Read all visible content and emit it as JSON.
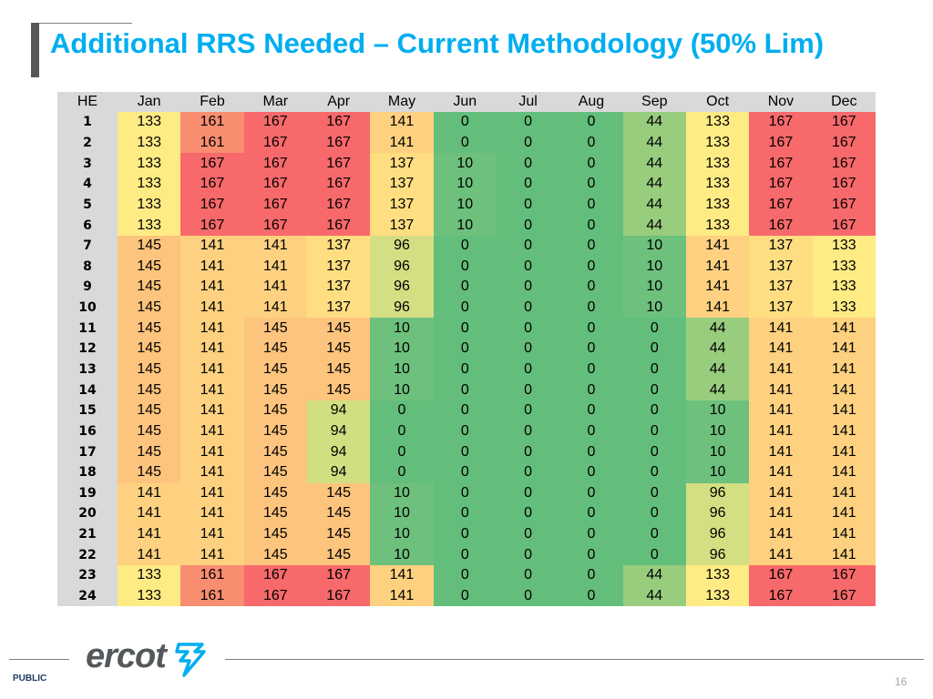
{
  "title": "Additional RRS Needed – Current Methodology (50% Lim)",
  "table": {
    "headers": [
      "HE",
      "Jan",
      "Feb",
      "Mar",
      "Apr",
      "May",
      "Jun",
      "Jul",
      "Aug",
      "Sep",
      "Oct",
      "Nov",
      "Dec"
    ],
    "rows": [
      [
        "1",
        133,
        161,
        167,
        167,
        141,
        0,
        0,
        0,
        44,
        133,
        167,
        167
      ],
      [
        "2",
        133,
        161,
        167,
        167,
        141,
        0,
        0,
        0,
        44,
        133,
        167,
        167
      ],
      [
        "3",
        133,
        167,
        167,
        167,
        137,
        10,
        0,
        0,
        44,
        133,
        167,
        167
      ],
      [
        "4",
        133,
        167,
        167,
        167,
        137,
        10,
        0,
        0,
        44,
        133,
        167,
        167
      ],
      [
        "5",
        133,
        167,
        167,
        167,
        137,
        10,
        0,
        0,
        44,
        133,
        167,
        167
      ],
      [
        "6",
        133,
        167,
        167,
        167,
        137,
        10,
        0,
        0,
        44,
        133,
        167,
        167
      ],
      [
        "7",
        145,
        141,
        141,
        137,
        96,
        0,
        0,
        0,
        10,
        141,
        137,
        133
      ],
      [
        "8",
        145,
        141,
        141,
        137,
        96,
        0,
        0,
        0,
        10,
        141,
        137,
        133
      ],
      [
        "9",
        145,
        141,
        141,
        137,
        96,
        0,
        0,
        0,
        10,
        141,
        137,
        133
      ],
      [
        "10",
        145,
        141,
        141,
        137,
        96,
        0,
        0,
        0,
        10,
        141,
        137,
        133
      ],
      [
        "11",
        145,
        141,
        145,
        145,
        10,
        0,
        0,
        0,
        0,
        44,
        141,
        141
      ],
      [
        "12",
        145,
        141,
        145,
        145,
        10,
        0,
        0,
        0,
        0,
        44,
        141,
        141
      ],
      [
        "13",
        145,
        141,
        145,
        145,
        10,
        0,
        0,
        0,
        0,
        44,
        141,
        141
      ],
      [
        "14",
        145,
        141,
        145,
        145,
        10,
        0,
        0,
        0,
        0,
        44,
        141,
        141
      ],
      [
        "15",
        145,
        141,
        145,
        94,
        0,
        0,
        0,
        0,
        0,
        10,
        141,
        141
      ],
      [
        "16",
        145,
        141,
        145,
        94,
        0,
        0,
        0,
        0,
        0,
        10,
        141,
        141
      ],
      [
        "17",
        145,
        141,
        145,
        94,
        0,
        0,
        0,
        0,
        0,
        10,
        141,
        141
      ],
      [
        "18",
        145,
        141,
        145,
        94,
        0,
        0,
        0,
        0,
        0,
        10,
        141,
        141
      ],
      [
        "19",
        141,
        141,
        145,
        145,
        10,
        0,
        0,
        0,
        0,
        96,
        141,
        141
      ],
      [
        "20",
        141,
        141,
        145,
        145,
        10,
        0,
        0,
        0,
        0,
        96,
        141,
        141
      ],
      [
        "21",
        141,
        141,
        145,
        145,
        10,
        0,
        0,
        0,
        0,
        96,
        141,
        141
      ],
      [
        "22",
        141,
        141,
        145,
        145,
        10,
        0,
        0,
        0,
        0,
        96,
        141,
        141
      ],
      [
        "23",
        133,
        161,
        167,
        167,
        141,
        0,
        0,
        0,
        44,
        133,
        167,
        167
      ],
      [
        "24",
        133,
        161,
        167,
        167,
        141,
        0,
        0,
        0,
        44,
        133,
        167,
        167
      ]
    ]
  },
  "colors": {
    "title": "#00aeef",
    "header_bg": "#d9d9d9",
    "scale": {
      "0": "#63be7b",
      "10": "#6dc17c",
      "44": "#98cd7e",
      "94": "#d1de82",
      "96": "#d3df82",
      "133": "#ffeb84",
      "137": "#fede81",
      "141": "#fdd17f",
      "145": "#fdc47d",
      "161": "#f98d70",
      "167": "#f8696b"
    }
  },
  "logo": {
    "text": "ercot",
    "icon": "ercot-bolt-icon"
  },
  "footer": {
    "label": "PUBLIC",
    "page_number": "16"
  }
}
